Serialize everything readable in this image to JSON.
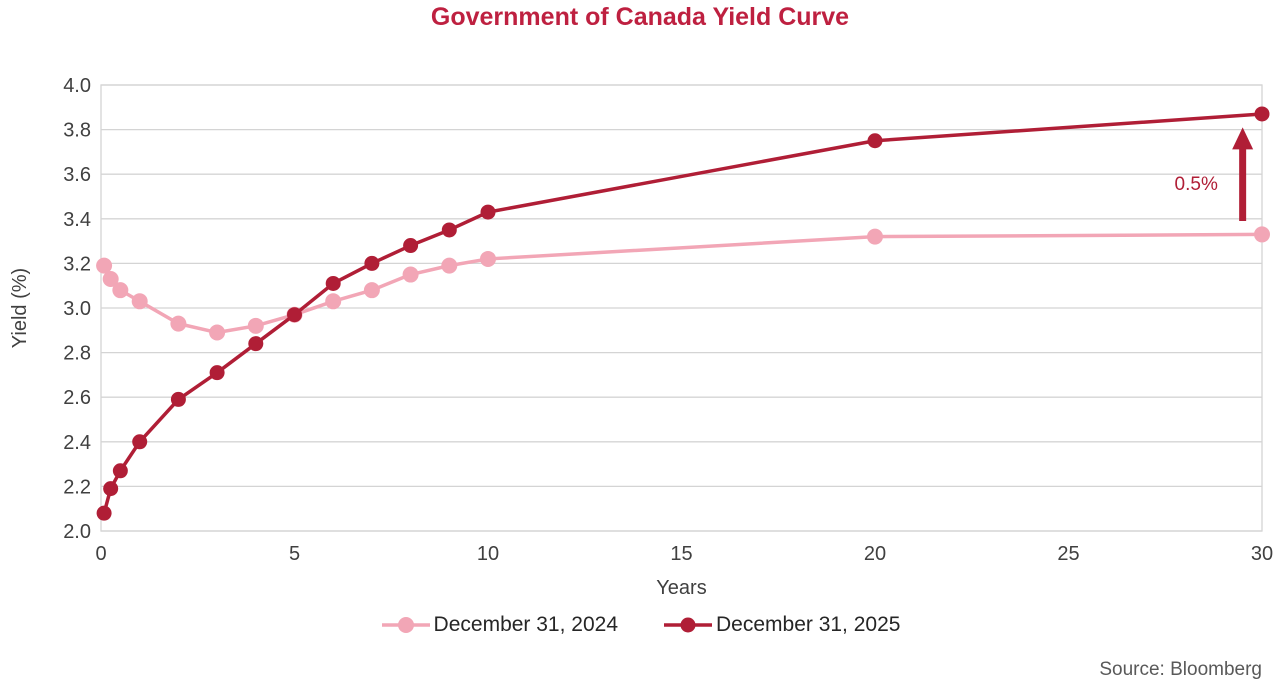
{
  "title": "Government of Canada Yield Curve",
  "source": "Source: Bloomberg",
  "colors": {
    "accent_title": "#BE2040",
    "series_2024_pink": "#F2A6B6",
    "series_2025_crimson": "#B01E36",
    "annotation_crimson": "#B01E36",
    "gridline": "#D4D4D4",
    "axis_text": "#404040",
    "legend_text": "#262626",
    "source_text": "#595959"
  },
  "chart_data": {
    "type": "line",
    "title": "Government of Canada Yield Curve",
    "xlabel": "Years",
    "ylabel": "Yield (%)",
    "xlim": [
      0,
      30
    ],
    "ylim": [
      2.0,
      4.0
    ],
    "x_ticks": [
      "0",
      "5",
      "10",
      "15",
      "20",
      "25",
      "30"
    ],
    "y_ticks": [
      "2.0",
      "2.2",
      "2.4",
      "2.6",
      "2.8",
      "3.0",
      "3.2",
      "3.4",
      "3.6",
      "3.8",
      "4.0"
    ],
    "grid": "horizontal",
    "legend_position": "bottom",
    "x": [
      0.08,
      0.25,
      0.5,
      1,
      2,
      3,
      4,
      5,
      6,
      7,
      8,
      9,
      10,
      20,
      30
    ],
    "series": [
      {
        "name": "December 31, 2024",
        "color": "#F2A6B6",
        "marker_radius": 8,
        "values": [
          3.19,
          3.13,
          3.08,
          3.03,
          2.93,
          2.89,
          2.92,
          2.97,
          3.03,
          3.08,
          3.15,
          3.19,
          3.22,
          3.32,
          3.33
        ]
      },
      {
        "name": "December 31, 2025",
        "color": "#B01E36",
        "marker_radius": 7.5,
        "values": [
          2.08,
          2.19,
          2.27,
          2.4,
          2.59,
          2.71,
          2.84,
          2.97,
          3.11,
          3.2,
          3.28,
          3.35,
          3.43,
          3.75,
          3.87
        ]
      }
    ],
    "annotation": {
      "label": "0.5%",
      "arrow_x": 29.5,
      "arrow_from": 3.39,
      "arrow_to": 3.81,
      "label_x": 28.3,
      "label_y": 3.56,
      "color": "#B01E36"
    }
  }
}
